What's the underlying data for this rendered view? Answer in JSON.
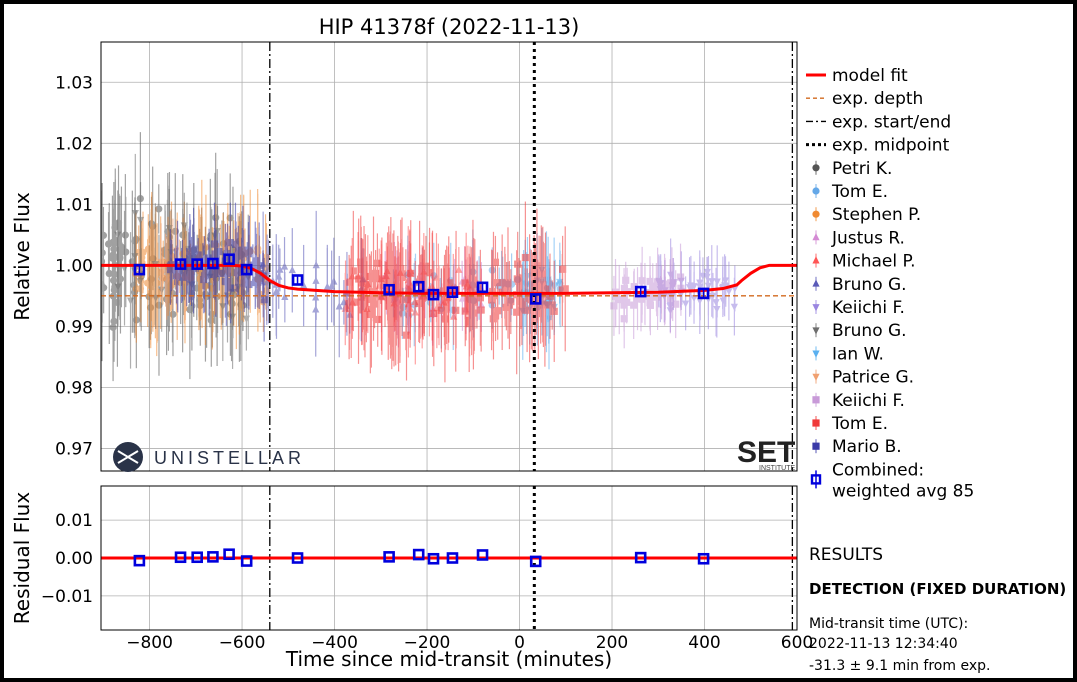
{
  "chart_data": {
    "type": "scatter",
    "title": "HIP 41378f  (2022-11-13)",
    "xlabel": "Time since mid-transit (minutes)",
    "ylabel_top": "Relative Flux",
    "ylabel_bottom": "Residual Flux",
    "xlim": [
      -905,
      600
    ],
    "ylim_top": [
      0.9663,
      1.0366
    ],
    "ylim_bottom": [
      -0.019,
      0.019
    ],
    "xticks": [
      -800,
      -600,
      -400,
      -200,
      0,
      200,
      400,
      600
    ],
    "yticks_top": [
      0.97,
      0.98,
      0.99,
      1.0,
      1.01,
      1.02,
      1.03
    ],
    "yticks_bottom": [
      -0.01,
      0.0,
      0.01
    ],
    "grid": true,
    "legend_position": "right, outside",
    "expected_depth": 0.995,
    "expected_start": -540,
    "expected_end": 590,
    "expected_midpoint": 32,
    "model_fit": {
      "x": [
        -905,
        -620,
        -600,
        -580,
        -560,
        -540,
        -520,
        -500,
        -480,
        -440,
        -400,
        -300,
        -200,
        -100,
        0,
        100,
        200,
        300,
        400,
        440,
        470,
        480,
        500,
        520,
        540,
        600
      ],
      "y": [
        1.0,
        1.0,
        0.9999,
        0.9995,
        0.9987,
        0.9975,
        0.9967,
        0.9963,
        0.9961,
        0.9959,
        0.9957,
        0.9955,
        0.9954,
        0.9954,
        0.9954,
        0.9954,
        0.9955,
        0.9956,
        0.9959,
        0.9962,
        0.9968,
        0.9975,
        0.9987,
        0.9996,
        1.0,
        1.0
      ]
    },
    "combined": {
      "name": "Combined: weighted avg 85",
      "x": [
        -822,
        -733,
        -697,
        -663,
        -628,
        -590,
        -480,
        -282,
        -218,
        -186,
        -145,
        -80,
        35,
        262,
        398
      ],
      "y": [
        0.9993,
        1.0002,
        1.0002,
        1.0003,
        1.001,
        0.9993,
        0.9976,
        0.996,
        0.9965,
        0.9952,
        0.9956,
        0.9964,
        0.9945,
        0.9957,
        0.9954
      ],
      "yerr": [
        0.0008,
        0.0008,
        0.0008,
        0.0008,
        0.0008,
        0.0008,
        0.0008,
        0.0008,
        0.0008,
        0.0008,
        0.0008,
        0.0008,
        0.0008,
        0.0008,
        0.0008
      ],
      "residual": [
        -0.0007,
        0.0002,
        0.0002,
        0.0003,
        0.001,
        -0.0008,
        0.0,
        0.0003,
        0.0009,
        -0.0002,
        0.0,
        0.0008,
        -0.0009,
        0.0001,
        -0.0002
      ]
    },
    "observers": [
      {
        "name": "Petri K.",
        "color": "#555555",
        "marker": "circle",
        "xrange": [
          -905,
          -590
        ],
        "yspread": 0.012,
        "err": 0.008,
        "n": 120
      },
      {
        "name": "Tom E.",
        "color": "#64a8e8",
        "marker": "circle",
        "xrange": [
          -280,
          95
        ],
        "yspread": 0.005,
        "err": 0.005,
        "n": 50
      },
      {
        "name": "Stephen P.",
        "color": "#f08a32",
        "marker": "circle",
        "xrange": [
          -830,
          -545
        ],
        "yspread": 0.007,
        "err": 0.007,
        "n": 120
      },
      {
        "name": "Justus R.",
        "color": "#d48ad4",
        "marker": "triangle-up",
        "xrange": [
          -300,
          -80
        ],
        "yspread": 0.005,
        "err": 0.005,
        "n": 30
      },
      {
        "name": "Michael P.",
        "color": "#ff5555",
        "marker": "triangle-up",
        "xrange": [
          -380,
          -100
        ],
        "yspread": 0.006,
        "err": 0.006,
        "n": 50
      },
      {
        "name": "Bruno G.",
        "color": "#5a5ab8",
        "marker": "triangle-up",
        "xrange": [
          -560,
          -330
        ],
        "yspread": 0.006,
        "err": 0.006,
        "n": 30
      },
      {
        "name": "Keiichi F.",
        "color": "#9a86e0",
        "marker": "triangle-down",
        "xrange": [
          300,
          470
        ],
        "yspread": 0.004,
        "err": 0.004,
        "n": 50
      },
      {
        "name": "Bruno G.",
        "color": "#6e6e6e",
        "marker": "triangle-down",
        "xrange": [
          -880,
          -580
        ],
        "yspread": 0.011,
        "err": 0.008,
        "n": 30
      },
      {
        "name": "Ian W.",
        "color": "#5ab0f0",
        "marker": "triangle-down",
        "xrange": [
          0,
          90
        ],
        "yspread": 0.006,
        "err": 0.006,
        "n": 20
      },
      {
        "name": "Patrice G.",
        "color": "#f0a070",
        "marker": "triangle-down",
        "xrange": [
          -780,
          -600
        ],
        "yspread": 0.005,
        "err": 0.005,
        "n": 15
      },
      {
        "name": "Keiichi F.",
        "color": "#c89ad8",
        "marker": "square",
        "xrange": [
          200,
          350
        ],
        "yspread": 0.004,
        "err": 0.004,
        "n": 45
      },
      {
        "name": "Tom E.",
        "color": "#f03838",
        "marker": "square",
        "xrange": [
          -370,
          100
        ],
        "yspread": 0.007,
        "err": 0.007,
        "n": 170
      },
      {
        "name": "Mario B.",
        "color": "#3a3aa8",
        "marker": "square",
        "xrange": [
          -760,
          -545
        ],
        "yspread": 0.005,
        "err": 0.005,
        "n": 90
      }
    ],
    "legend": {
      "model_fit": "model fit",
      "exp_depth": "exp. depth",
      "exp_start_end": "exp. start/end",
      "exp_midpoint": "exp. midpoint",
      "combined_line1": "Combined:",
      "combined_line2": "weighted avg 85"
    },
    "colors": {
      "model": "#ff0000",
      "depth": "#d2691e",
      "combined": "#0000dd",
      "grid": "#b0b0b0"
    }
  },
  "logos": {
    "unistellar": "UNISTELLAR",
    "seti": "SETI",
    "seti_sub": "INSTITUTE"
  },
  "results": {
    "heading": "RESULTS",
    "detection": "DETECTION (FIXED DURATION)",
    "midtransit_label": "Mid-transit time (UTC):",
    "midtransit_value": "2022-11-13 12:34:40",
    "midtransit_diff": "-31.3 ± 9.1 min from exp."
  }
}
